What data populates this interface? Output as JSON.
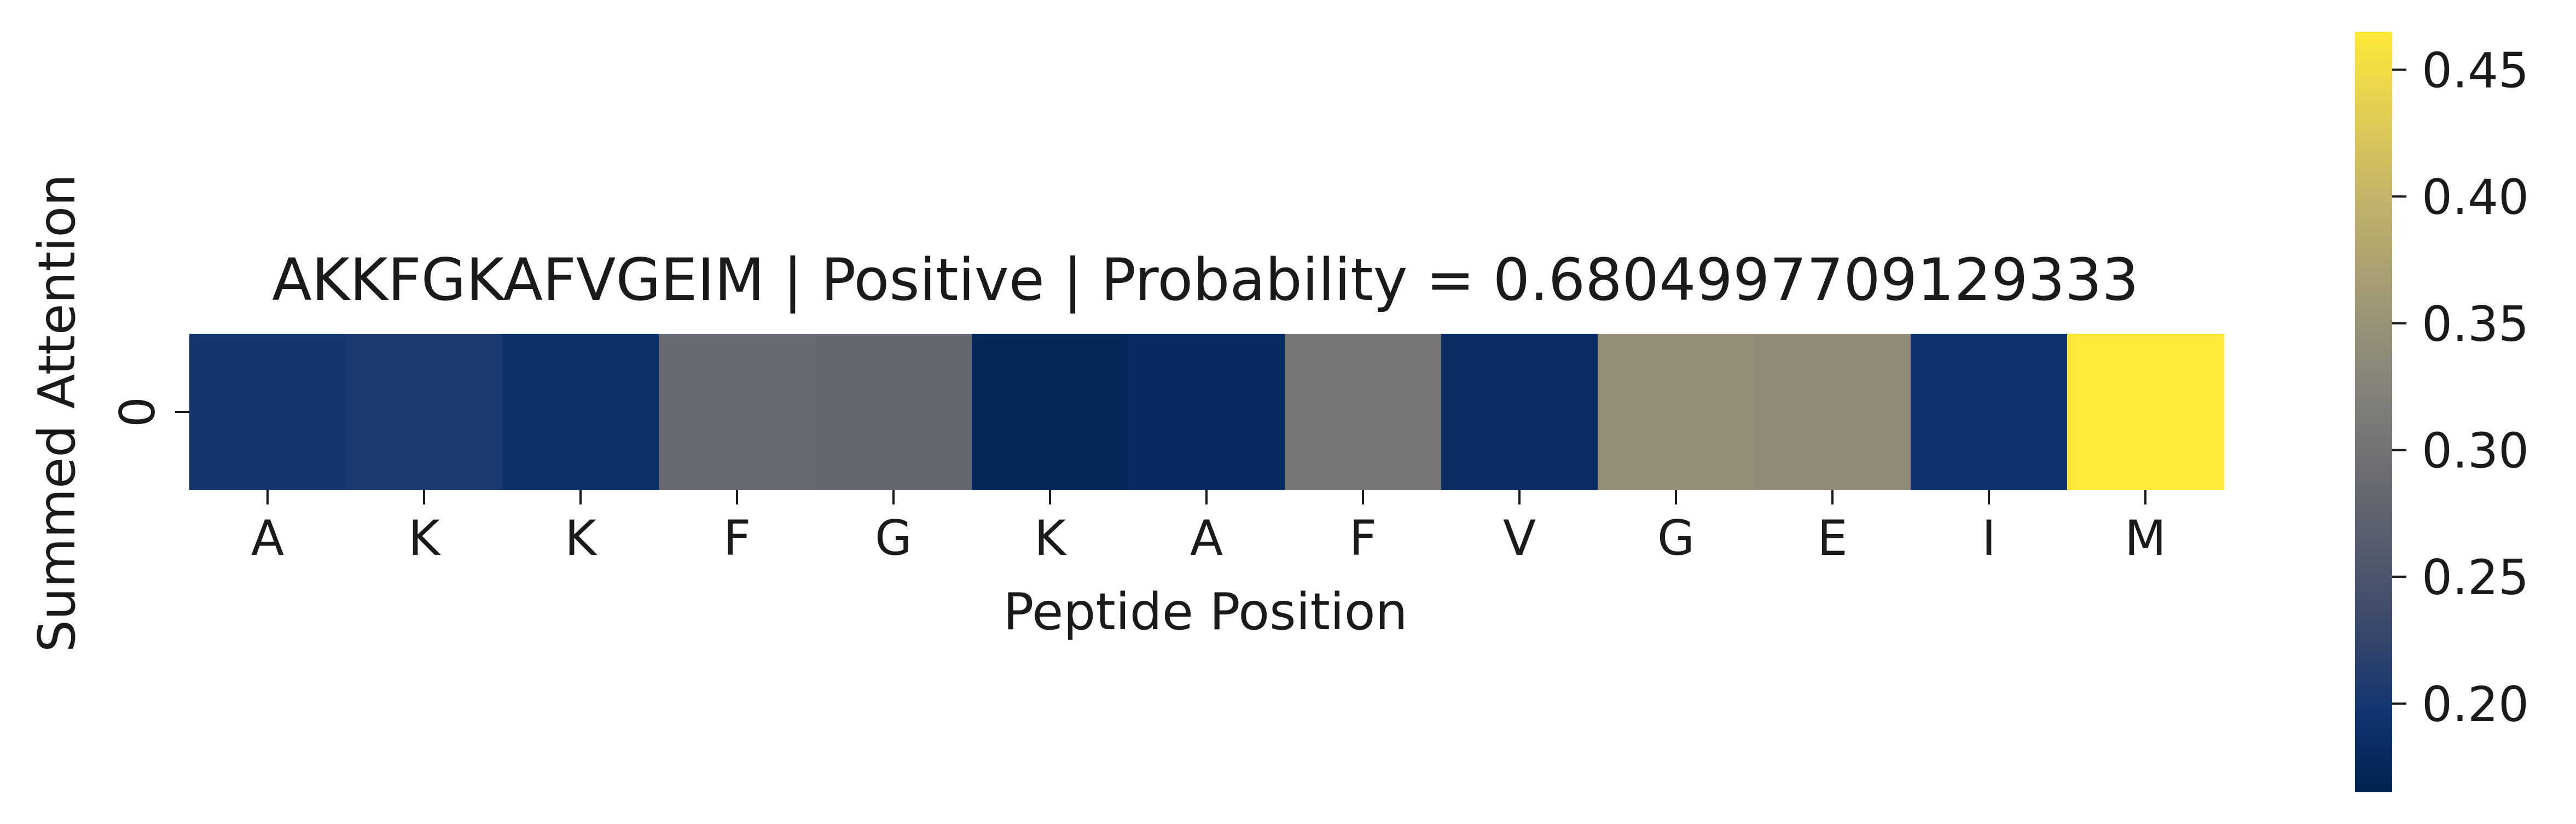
{
  "chart_data": {
    "type": "heatmap",
    "title": "AKKFGKAFVGEIM | Positive | Probability = 0.6804997709129333",
    "xlabel": "Peptide Position",
    "ylabel": "Summed Attention",
    "x_tick_labels": [
      "A",
      "K",
      "K",
      "F",
      "G",
      "K",
      "A",
      "F",
      "V",
      "G",
      "E",
      "I",
      "M"
    ],
    "y_tick_labels": [
      "0"
    ],
    "values": [
      [
        0.2,
        0.203,
        0.19,
        0.288,
        0.282,
        0.175,
        0.182,
        0.305,
        0.183,
        0.343,
        0.338,
        0.193,
        0.465
      ]
    ],
    "colormap": "cividis",
    "colorbar": {
      "range": [
        0.165,
        0.465
      ],
      "ticks": [
        0.2,
        0.25,
        0.3,
        0.35,
        0.4,
        0.45
      ],
      "tick_labels": [
        "0.20",
        "0.25",
        "0.30",
        "0.35",
        "0.40",
        "0.45"
      ]
    }
  }
}
